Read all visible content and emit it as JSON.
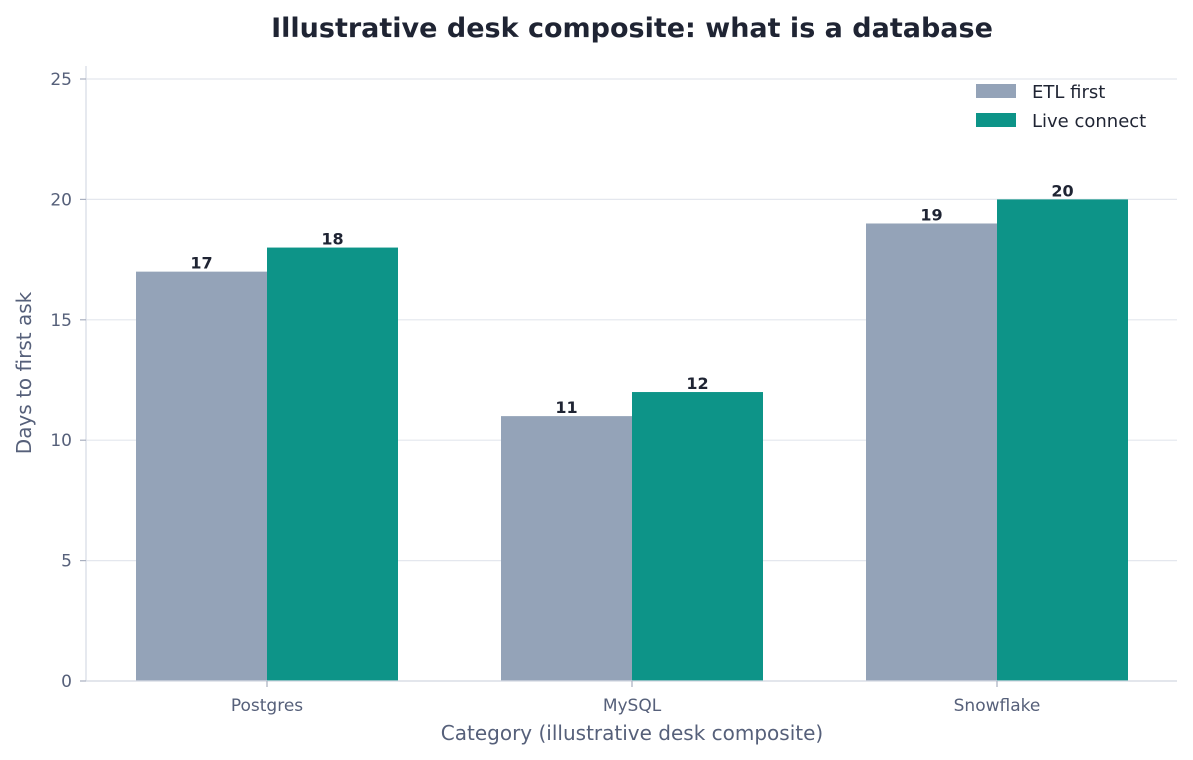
{
  "chart_data": {
    "type": "bar",
    "title": "Illustrative desk composite: what is a database",
    "xlabel": "Category (illustrative desk composite)",
    "ylabel": "Days to first ask",
    "categories": [
      "Postgres",
      "MySQL",
      "Snowflake"
    ],
    "series": [
      {
        "name": "ETL first",
        "values": [
          17,
          11,
          19
        ],
        "color": "#94a3b8"
      },
      {
        "name": "Live connect",
        "values": [
          18,
          12,
          20
        ],
        "color": "#0d9488"
      }
    ],
    "ylim": [
      0,
      25
    ],
    "yticks": [
      0,
      5,
      10,
      15,
      20,
      25
    ],
    "grid": true,
    "legend": "top-right",
    "data_labels": true
  }
}
